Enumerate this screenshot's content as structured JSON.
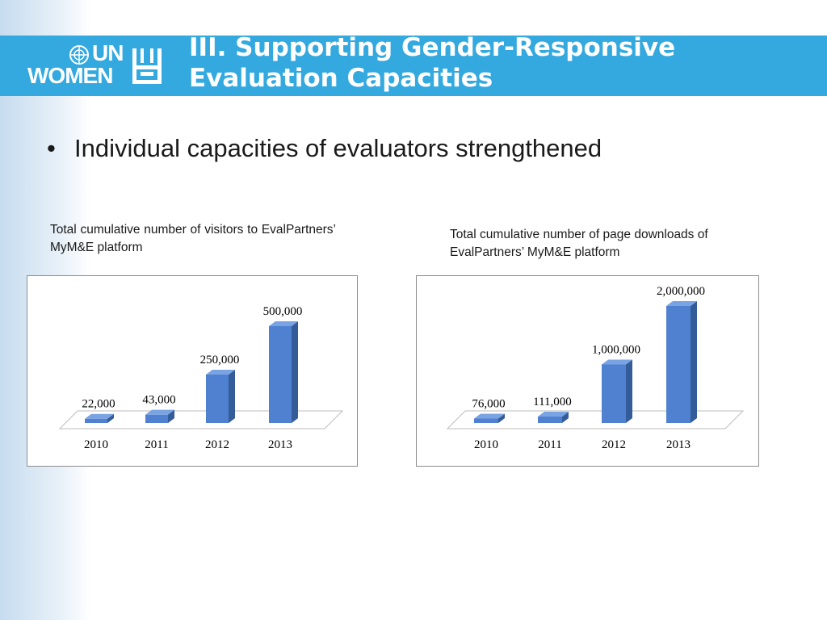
{
  "slide": {
    "title": "III. Supporting Gender-Responsive Evaluation Capacities",
    "bullet_marker": "•",
    "bullet_text": "Individual capacities of evaluators strengthened"
  },
  "logo": {
    "top_text": "UN",
    "bottom_text": "WOMEN"
  },
  "colors": {
    "header_band": "#33a9e0",
    "bar_front": "#4f81d0",
    "bar_side": "#335c99",
    "bar_top": "#7aa3e3"
  },
  "chart_data": [
    {
      "type": "bar",
      "caption": "Total cumulative number of visitors to EvalPartners’ MyM&E platform",
      "categories": [
        "2010",
        "2011",
        "2012",
        "2013"
      ],
      "values": [
        22000,
        43000,
        250000,
        500000
      ],
      "value_labels": [
        "22,000",
        "43,000",
        "250,000",
        "500,000"
      ],
      "ylim": [
        0,
        500000
      ],
      "grid": false,
      "legend": "none",
      "style": "3d"
    },
    {
      "type": "bar",
      "caption": "Total cumulative number of page downloads of EvalPartners’ MyM&E platform",
      "categories": [
        "2010",
        "2011",
        "2012",
        "2013"
      ],
      "values": [
        76000,
        111000,
        1000000,
        2000000
      ],
      "value_labels": [
        "76,000",
        "111,000",
        "1,000,000",
        "2,000,000"
      ],
      "ylim": [
        0,
        2000000
      ],
      "grid": false,
      "legend": "none",
      "style": "3d"
    }
  ]
}
